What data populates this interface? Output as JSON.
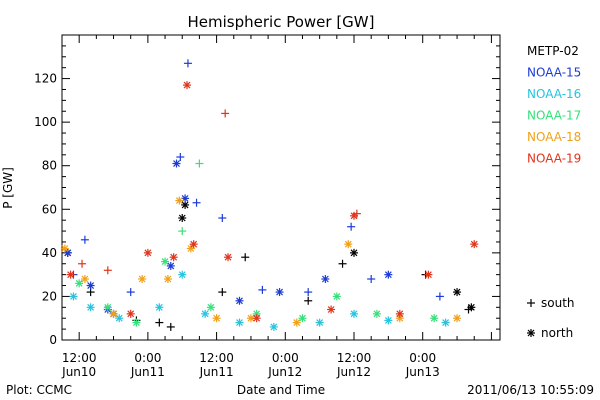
{
  "chart_data": {
    "type": "scatter",
    "title": "Hemispheric Power [GW]",
    "xlabel": "Date and Time",
    "ylabel": "P [GW]",
    "ylim": [
      0,
      140
    ],
    "yticks": [
      0,
      20,
      40,
      60,
      80,
      100,
      120
    ],
    "xlim": [
      "2011-06-10 09:00",
      "2011-06-13 13:30"
    ],
    "xticks": [
      {
        "time": "2011-06-10 12:00",
        "label_top": "12:00",
        "label_bottom": "Jun10"
      },
      {
        "time": "2011-06-11 00:00",
        "label_top": "0:00",
        "label_bottom": "Jun11"
      },
      {
        "time": "2011-06-11 12:00",
        "label_top": "12:00",
        "label_bottom": "Jun11"
      },
      {
        "time": "2011-06-12 00:00",
        "label_top": "0:00",
        "label_bottom": "Jun12"
      },
      {
        "time": "2011-06-12 12:00",
        "label_top": "12:00",
        "label_bottom": "Jun12"
      },
      {
        "time": "2011-06-13 00:00",
        "label_top": "0:00",
        "label_bottom": "Jun13"
      }
    ],
    "grid": false,
    "legend_position": "right",
    "marker_legend": [
      {
        "marker": "+",
        "label": "south"
      },
      {
        "marker": "*",
        "label": "north"
      }
    ],
    "series": [
      {
        "name": "METP-02",
        "color": "#000000",
        "points": [
          {
            "x": "2011-06-10 10:00",
            "y": 40,
            "m": "*"
          },
          {
            "x": "2011-06-10 14:00",
            "y": 22,
            "m": "+"
          },
          {
            "x": "2011-06-10 18:00",
            "y": 12,
            "m": "*"
          },
          {
            "x": "2011-06-10 22:00",
            "y": 9,
            "m": "+"
          },
          {
            "x": "2011-06-11 02:00",
            "y": 8,
            "m": "+"
          },
          {
            "x": "2011-06-11 04:00",
            "y": 6,
            "m": "+"
          },
          {
            "x": "2011-06-11 06:00",
            "y": 56,
            "m": "*"
          },
          {
            "x": "2011-06-11 06:30",
            "y": 62,
            "m": "*"
          },
          {
            "x": "2011-06-11 13:00",
            "y": 22,
            "m": "+"
          },
          {
            "x": "2011-06-11 17:00",
            "y": 38,
            "m": "+"
          },
          {
            "x": "2011-06-12 04:00",
            "y": 18,
            "m": "+"
          },
          {
            "x": "2011-06-12 10:00",
            "y": 35,
            "m": "+"
          },
          {
            "x": "2011-06-12 12:00",
            "y": 40,
            "m": "*"
          },
          {
            "x": "2011-06-13 00:30",
            "y": 30,
            "m": "+"
          },
          {
            "x": "2011-06-13 06:00",
            "y": 22,
            "m": "*"
          },
          {
            "x": "2011-06-13 08:00",
            "y": 14,
            "m": "+"
          },
          {
            "x": "2011-06-13 08:30",
            "y": 15,
            "m": "*"
          }
        ]
      },
      {
        "name": "NOAA-15",
        "color": "#1c3cd8",
        "points": [
          {
            "x": "2011-06-10 10:00",
            "y": 40,
            "m": "*"
          },
          {
            "x": "2011-06-10 11:00",
            "y": 30,
            "m": "+"
          },
          {
            "x": "2011-06-10 13:00",
            "y": 46,
            "m": "+"
          },
          {
            "x": "2011-06-10 14:00",
            "y": 25,
            "m": "*"
          },
          {
            "x": "2011-06-10 17:00",
            "y": 14,
            "m": "*"
          },
          {
            "x": "2011-06-10 21:00",
            "y": 22,
            "m": "+"
          },
          {
            "x": "2011-06-11 04:00",
            "y": 34,
            "m": "*"
          },
          {
            "x": "2011-06-11 05:00",
            "y": 81,
            "m": "*"
          },
          {
            "x": "2011-06-11 05:40",
            "y": 84,
            "m": "+"
          },
          {
            "x": "2011-06-11 06:30",
            "y": 65,
            "m": "*"
          },
          {
            "x": "2011-06-11 07:00",
            "y": 127,
            "m": "+"
          },
          {
            "x": "2011-06-11 08:30",
            "y": 63,
            "m": "+"
          },
          {
            "x": "2011-06-11 13:00",
            "y": 56,
            "m": "+"
          },
          {
            "x": "2011-06-11 16:00",
            "y": 18,
            "m": "*"
          },
          {
            "x": "2011-06-11 20:00",
            "y": 23,
            "m": "+"
          },
          {
            "x": "2011-06-11 23:00",
            "y": 22,
            "m": "*"
          },
          {
            "x": "2011-06-12 04:00",
            "y": 22,
            "m": "+"
          },
          {
            "x": "2011-06-12 07:00",
            "y": 28,
            "m": "*"
          },
          {
            "x": "2011-06-12 11:30",
            "y": 52,
            "m": "+"
          },
          {
            "x": "2011-06-12 15:00",
            "y": 28,
            "m": "+"
          },
          {
            "x": "2011-06-12 18:00",
            "y": 30,
            "m": "*"
          },
          {
            "x": "2011-06-13 03:00",
            "y": 20,
            "m": "+"
          }
        ]
      },
      {
        "name": "NOAA-16",
        "color": "#26c4e0",
        "points": [
          {
            "x": "2011-06-10 11:00",
            "y": 20,
            "m": "*"
          },
          {
            "x": "2011-06-10 14:00",
            "y": 15,
            "m": "*"
          },
          {
            "x": "2011-06-10 19:00",
            "y": 10,
            "m": "*"
          },
          {
            "x": "2011-06-11 02:00",
            "y": 15,
            "m": "*"
          },
          {
            "x": "2011-06-11 06:00",
            "y": 30,
            "m": "*"
          },
          {
            "x": "2011-06-11 10:00",
            "y": 12,
            "m": "*"
          },
          {
            "x": "2011-06-11 16:00",
            "y": 8,
            "m": "*"
          },
          {
            "x": "2011-06-11 22:00",
            "y": 6,
            "m": "*"
          },
          {
            "x": "2011-06-12 06:00",
            "y": 8,
            "m": "*"
          },
          {
            "x": "2011-06-12 12:00",
            "y": 12,
            "m": "*"
          },
          {
            "x": "2011-06-12 18:00",
            "y": 9,
            "m": "*"
          },
          {
            "x": "2011-06-13 04:00",
            "y": 8,
            "m": "*"
          }
        ]
      },
      {
        "name": "NOAA-17",
        "color": "#36e07a",
        "points": [
          {
            "x": "2011-06-10 12:00",
            "y": 26,
            "m": "*"
          },
          {
            "x": "2011-06-10 17:00",
            "y": 15,
            "m": "*"
          },
          {
            "x": "2011-06-10 22:00",
            "y": 8,
            "m": "*"
          },
          {
            "x": "2011-06-11 03:00",
            "y": 36,
            "m": "*"
          },
          {
            "x": "2011-06-11 06:00",
            "y": 50,
            "m": "+"
          },
          {
            "x": "2011-06-11 09:00",
            "y": 81,
            "m": "+"
          },
          {
            "x": "2011-06-11 11:00",
            "y": 15,
            "m": "*"
          },
          {
            "x": "2011-06-11 19:00",
            "y": 12,
            "m": "*"
          },
          {
            "x": "2011-06-12 03:00",
            "y": 10,
            "m": "*"
          },
          {
            "x": "2011-06-12 09:00",
            "y": 20,
            "m": "*"
          },
          {
            "x": "2011-06-12 16:00",
            "y": 12,
            "m": "*"
          },
          {
            "x": "2011-06-13 02:00",
            "y": 10,
            "m": "*"
          }
        ]
      },
      {
        "name": "NOAA-18",
        "color": "#f0a018",
        "points": [
          {
            "x": "2011-06-10 09:30",
            "y": 42,
            "m": "*"
          },
          {
            "x": "2011-06-10 13:00",
            "y": 28,
            "m": "*"
          },
          {
            "x": "2011-06-10 18:00",
            "y": 12,
            "m": "*"
          },
          {
            "x": "2011-06-10 23:00",
            "y": 28,
            "m": "*"
          },
          {
            "x": "2011-06-11 03:30",
            "y": 28,
            "m": "*"
          },
          {
            "x": "2011-06-11 05:30",
            "y": 64,
            "m": "*"
          },
          {
            "x": "2011-06-11 07:30",
            "y": 42,
            "m": "*"
          },
          {
            "x": "2011-06-11 12:00",
            "y": 10,
            "m": "*"
          },
          {
            "x": "2011-06-11 18:00",
            "y": 10,
            "m": "*"
          },
          {
            "x": "2011-06-12 02:00",
            "y": 8,
            "m": "*"
          },
          {
            "x": "2011-06-12 11:00",
            "y": 44,
            "m": "*"
          },
          {
            "x": "2011-06-12 20:00",
            "y": 10,
            "m": "*"
          },
          {
            "x": "2011-06-13 06:00",
            "y": 10,
            "m": "*"
          }
        ]
      },
      {
        "name": "NOAA-19",
        "color": "#e0341c",
        "points": [
          {
            "x": "2011-06-10 10:30",
            "y": 30,
            "m": "*"
          },
          {
            "x": "2011-06-10 12:30",
            "y": 35,
            "m": "+"
          },
          {
            "x": "2011-06-10 17:00",
            "y": 32,
            "m": "+"
          },
          {
            "x": "2011-06-10 21:00",
            "y": 12,
            "m": "*"
          },
          {
            "x": "2011-06-11 00:00",
            "y": 40,
            "m": "*"
          },
          {
            "x": "2011-06-11 04:30",
            "y": 38,
            "m": "*"
          },
          {
            "x": "2011-06-11 06:50",
            "y": 117,
            "m": "*"
          },
          {
            "x": "2011-06-11 08:00",
            "y": 44,
            "m": "*"
          },
          {
            "x": "2011-06-11 13:30",
            "y": 104,
            "m": "+"
          },
          {
            "x": "2011-06-11 14:00",
            "y": 38,
            "m": "*"
          },
          {
            "x": "2011-06-11 19:00",
            "y": 10,
            "m": "*"
          },
          {
            "x": "2011-06-12 08:00",
            "y": 14,
            "m": "*"
          },
          {
            "x": "2011-06-12 12:00",
            "y": 57,
            "m": "*"
          },
          {
            "x": "2011-06-12 12:30",
            "y": 58,
            "m": "+"
          },
          {
            "x": "2011-06-12 20:00",
            "y": 12,
            "m": "*"
          },
          {
            "x": "2011-06-13 01:00",
            "y": 30,
            "m": "*"
          },
          {
            "x": "2011-06-13 09:00",
            "y": 44,
            "m": "*"
          }
        ]
      }
    ]
  },
  "footer": {
    "left": "Plot: CCMC",
    "center": "Date and Time",
    "right": "2011/06/13 10:55:09"
  }
}
